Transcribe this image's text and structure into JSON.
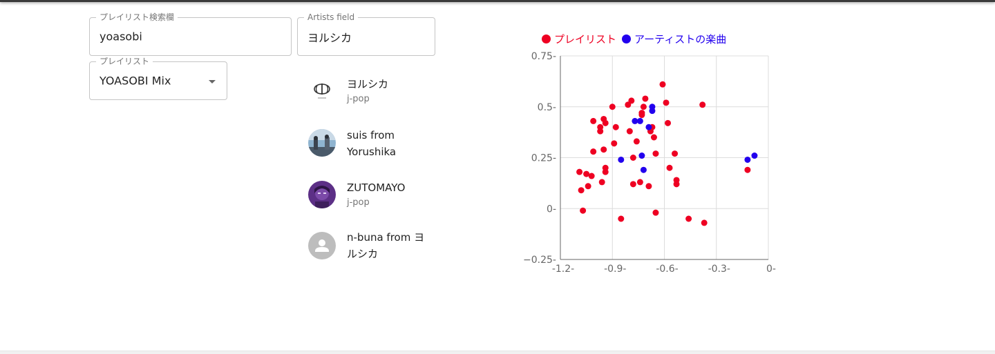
{
  "search": {
    "legend": "プレイリスト検索欄",
    "value": "yoasobi"
  },
  "artists_field": {
    "legend": "Artists field",
    "value": "ヨルシカ"
  },
  "playlist_select": {
    "legend": "プレイリスト",
    "value": "YOASOBI Mix"
  },
  "artists": [
    {
      "name": "ヨルシカ",
      "genre": "j-pop",
      "avatar": "yorushika-logo"
    },
    {
      "name": "suis from Yorushika",
      "genre": "",
      "avatar": "photo"
    },
    {
      "name": "ZUTOMAYO",
      "genre": "j-pop",
      "avatar": "illustration"
    },
    {
      "name": "n-buna from ヨルシカ",
      "genre": "",
      "avatar": "person-placeholder-icon"
    }
  ],
  "chart_data": {
    "type": "scatter",
    "legend_position": "top-left",
    "xlim": [
      -1.2,
      0
    ],
    "ylim": [
      -0.25,
      0.75
    ],
    "x_ticks": [
      "-1.2-",
      "-0.9-",
      "-0.6-",
      "-0.3-",
      "0-"
    ],
    "y_ticks": [
      "0.75-",
      "0.5-",
      "0.25-",
      "0-",
      "−0.25-"
    ],
    "x_tick_values": [
      -1.2,
      -0.9,
      -0.6,
      -0.3,
      0
    ],
    "y_tick_values": [
      0.75,
      0.5,
      0.25,
      0,
      -0.25
    ],
    "grid": true,
    "series": [
      {
        "name": "プレイリスト",
        "color": "#ee0022",
        "points": [
          [
            -0.61,
            0.61
          ],
          [
            -0.71,
            0.54
          ],
          [
            -0.79,
            0.53
          ],
          [
            -0.81,
            0.51
          ],
          [
            -0.9,
            0.5
          ],
          [
            -0.59,
            0.52
          ],
          [
            -0.38,
            0.51
          ],
          [
            -0.72,
            0.5
          ],
          [
            -0.73,
            0.47
          ],
          [
            -0.73,
            0.46
          ],
          [
            -0.67,
            0.4
          ],
          [
            -0.68,
            0.38
          ],
          [
            -0.95,
            0.44
          ],
          [
            -1.01,
            0.43
          ],
          [
            -0.94,
            0.42
          ],
          [
            -0.58,
            0.42
          ],
          [
            -0.97,
            0.4
          ],
          [
            -0.97,
            0.38
          ],
          [
            -0.88,
            0.4
          ],
          [
            -0.8,
            0.38
          ],
          [
            -0.66,
            0.35
          ],
          [
            -0.76,
            0.33
          ],
          [
            -0.89,
            0.32
          ],
          [
            -0.95,
            0.29
          ],
          [
            -1.01,
            0.28
          ],
          [
            -0.65,
            0.27
          ],
          [
            -0.54,
            0.27
          ],
          [
            -0.78,
            0.25
          ],
          [
            -0.94,
            0.2
          ],
          [
            -0.57,
            0.2
          ],
          [
            -0.94,
            0.18
          ],
          [
            -1.09,
            0.18
          ],
          [
            -1.05,
            0.17
          ],
          [
            -1.02,
            0.16
          ],
          [
            -0.53,
            0.14
          ],
          [
            -0.53,
            0.12
          ],
          [
            -0.96,
            0.13
          ],
          [
            -0.78,
            0.12
          ],
          [
            -0.74,
            0.13
          ],
          [
            -0.69,
            0.11
          ],
          [
            -1.04,
            0.11
          ],
          [
            -1.08,
            0.09
          ],
          [
            -0.12,
            0.19
          ],
          [
            -1.07,
            -0.01
          ],
          [
            -0.65,
            -0.02
          ],
          [
            -0.85,
            -0.05
          ],
          [
            -0.46,
            -0.05
          ],
          [
            -0.37,
            -0.07
          ]
        ]
      },
      {
        "name": "アーティストの楽曲",
        "color": "#2200ee",
        "points": [
          [
            -0.67,
            0.5
          ],
          [
            -0.67,
            0.48
          ],
          [
            -0.77,
            0.43
          ],
          [
            -0.74,
            0.43
          ],
          [
            -0.69,
            0.4
          ],
          [
            -0.73,
            0.26
          ],
          [
            -0.85,
            0.24
          ],
          [
            -0.72,
            0.19
          ],
          [
            -0.12,
            0.24
          ],
          [
            -0.08,
            0.26
          ]
        ]
      }
    ]
  }
}
